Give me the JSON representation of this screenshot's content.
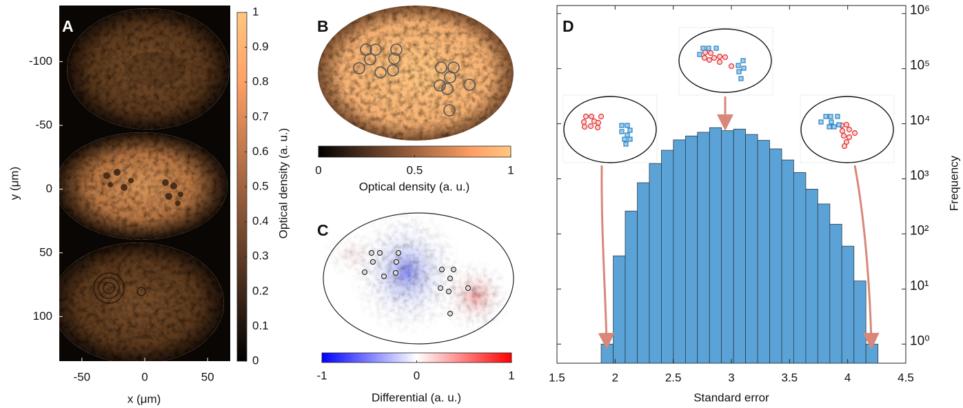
{
  "chart_data": [
    {
      "type": "image",
      "panel": "A",
      "xlabel": "x (μm)",
      "ylabel": "y (μm)",
      "xlim": [
        -68,
        68
      ],
      "ylim": [
        -144,
        135
      ],
      "xticks": [
        -50,
        0,
        50
      ],
      "yticks": [
        -100,
        -50,
        0,
        50,
        100
      ],
      "colorbar": {
        "label": "Optical density (a. u.)",
        "lim": [
          0,
          1
        ],
        "ticks": [
          0,
          0.1,
          0.2,
          0.3,
          0.4,
          0.5,
          0.6,
          0.7,
          0.8,
          0.9,
          1
        ],
        "orientation": "vertical",
        "colormap": "copper"
      }
    },
    {
      "type": "image",
      "panel": "B",
      "colorbar": {
        "label": "Optical density (a. u.)",
        "lim": [
          0,
          1
        ],
        "ticks": [
          0,
          0.5,
          1
        ],
        "orientation": "horizontal",
        "colormap": "copper"
      }
    },
    {
      "type": "image",
      "panel": "C",
      "colorbar": {
        "label": "Differential (a. u.)",
        "lim": [
          -1,
          1
        ],
        "ticks": [
          -1,
          0,
          1
        ],
        "orientation": "horizontal",
        "colormap": "bwr"
      }
    },
    {
      "type": "histogram",
      "panel": "D",
      "xlabel": "Standard error",
      "ylabel": "Frequency",
      "color": "#5ba3d6",
      "bins": [
        1.88,
        1.984,
        2.087,
        2.191,
        2.294,
        2.398,
        2.501,
        2.605,
        2.708,
        2.812,
        2.915,
        3.019,
        3.122,
        3.226,
        3.329,
        3.433,
        3.536,
        3.64,
        3.743,
        3.847,
        3.95,
        4.054,
        4.157,
        4.261
      ],
      "values": [
        1,
        40,
        260,
        850,
        1900,
        3300,
        5100,
        6000,
        7000,
        8500,
        7500,
        8000,
        6400,
        5000,
        3500,
        2200,
        1300,
        650,
        350,
        150,
        60,
        14,
        1
      ],
      "xlim": [
        1.5,
        4.5
      ],
      "xticks": [
        1.5,
        2,
        2.5,
        3,
        3.5,
        4,
        4.5
      ],
      "ylim": [
        0.45,
        1400000
      ],
      "log_y": true,
      "y_axis_side": "right",
      "yticks": [
        {
          "value": 1,
          "label": "10⁰"
        },
        {
          "value": 10,
          "label": "10¹"
        },
        {
          "value": 100,
          "label": "10²"
        },
        {
          "value": 1000,
          "label": "10³"
        },
        {
          "value": 10000,
          "label": "10⁴"
        },
        {
          "value": 100000,
          "label": "10⁵"
        },
        {
          "value": 1000000,
          "label": "10⁶"
        }
      ]
    }
  ]
}
